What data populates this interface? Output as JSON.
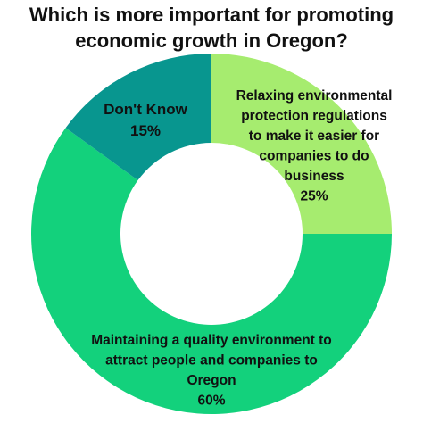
{
  "title_lines": [
    "Which is more important for promoting",
    "economic growth in Oregon?"
  ],
  "chart_data": {
    "type": "pie",
    "donut": true,
    "title": "Which is more important for promoting economic growth in Oregon?",
    "slices": [
      {
        "label_lines": [
          "Relaxing environmental",
          "protection regulations",
          "to make it easier for",
          "companies to do",
          "business"
        ],
        "value": 25,
        "value_label": "25%",
        "color": "#a6ec6f"
      },
      {
        "label_lines": [
          "Maintaining a quality environment to",
          "attract people and companies to",
          "Oregon"
        ],
        "value": 60,
        "value_label": "60%",
        "color": "#13d17c"
      },
      {
        "label_lines": [
          "Don't Know"
        ],
        "value": 15,
        "value_label": "15%",
        "color": "#08968f"
      }
    ]
  }
}
